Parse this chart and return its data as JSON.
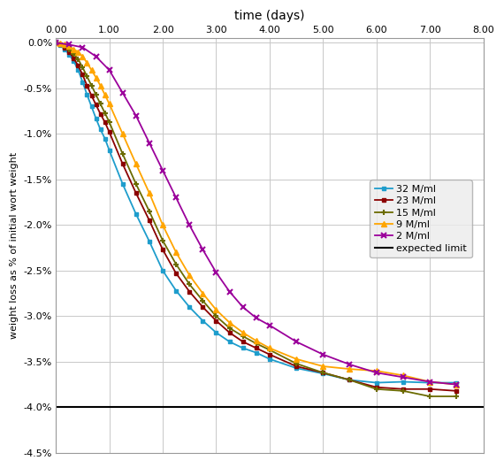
{
  "title": "time (days)",
  "ylabel": "weight loss as % of initial wort weight",
  "xlim": [
    0,
    8.0
  ],
  "ylim": [
    -4.5,
    0.05
  ],
  "xticks": [
    0.0,
    1.0,
    2.0,
    3.0,
    4.0,
    5.0,
    6.0,
    7.0,
    8.0
  ],
  "yticks": [
    0.0,
    -0.5,
    -1.0,
    -1.5,
    -2.0,
    -2.5,
    -3.0,
    -3.5,
    -4.0,
    -4.5
  ],
  "expected_limit": -4.0,
  "series": {
    "32 M/ml": {
      "color": "#1E9DCC",
      "x": [
        0,
        0.083,
        0.167,
        0.25,
        0.333,
        0.417,
        0.5,
        0.583,
        0.667,
        0.75,
        0.833,
        0.917,
        1.0,
        1.25,
        1.5,
        1.75,
        2.0,
        2.25,
        2.5,
        2.75,
        3.0,
        3.25,
        3.5,
        3.75,
        4.0,
        4.5,
        5.0,
        5.5,
        6.0,
        6.5,
        7.0,
        7.5
      ],
      "y": [
        0,
        -0.03,
        -0.07,
        -0.13,
        -0.2,
        -0.3,
        -0.43,
        -0.57,
        -0.7,
        -0.83,
        -0.95,
        -1.05,
        -1.18,
        -1.55,
        -1.88,
        -2.18,
        -2.5,
        -2.72,
        -2.9,
        -3.05,
        -3.18,
        -3.28,
        -3.35,
        -3.4,
        -3.47,
        -3.57,
        -3.63,
        -3.7,
        -3.73,
        -3.72,
        -3.73,
        -3.73
      ]
    },
    "23 M/ml": {
      "color": "#8B0000",
      "x": [
        0,
        0.083,
        0.167,
        0.25,
        0.333,
        0.417,
        0.5,
        0.583,
        0.667,
        0.75,
        0.833,
        0.917,
        1.0,
        1.25,
        1.5,
        1.75,
        2.0,
        2.25,
        2.5,
        2.75,
        3.0,
        3.25,
        3.5,
        3.75,
        4.0,
        4.5,
        5.0,
        5.5,
        6.0,
        6.5,
        7.0,
        7.5
      ],
      "y": [
        0,
        -0.02,
        -0.05,
        -0.1,
        -0.17,
        -0.25,
        -0.35,
        -0.47,
        -0.58,
        -0.68,
        -0.78,
        -0.87,
        -0.98,
        -1.33,
        -1.65,
        -1.95,
        -2.27,
        -2.53,
        -2.73,
        -2.9,
        -3.05,
        -3.18,
        -3.28,
        -3.35,
        -3.42,
        -3.55,
        -3.62,
        -3.7,
        -3.78,
        -3.8,
        -3.8,
        -3.82
      ]
    },
    "15 M/ml": {
      "color": "#6B6B00",
      "x": [
        0,
        0.083,
        0.167,
        0.25,
        0.333,
        0.417,
        0.5,
        0.583,
        0.667,
        0.75,
        0.833,
        0.917,
        1.0,
        1.25,
        1.5,
        1.75,
        2.0,
        2.25,
        2.5,
        2.75,
        3.0,
        3.25,
        3.5,
        3.75,
        4.0,
        4.5,
        5.0,
        5.5,
        6.0,
        6.5,
        7.0,
        7.5
      ],
      "y": [
        0,
        -0.02,
        -0.04,
        -0.07,
        -0.12,
        -0.18,
        -0.27,
        -0.37,
        -0.47,
        -0.57,
        -0.67,
        -0.77,
        -0.87,
        -1.22,
        -1.55,
        -1.85,
        -2.17,
        -2.43,
        -2.65,
        -2.83,
        -3.0,
        -3.13,
        -3.22,
        -3.3,
        -3.37,
        -3.52,
        -3.62,
        -3.7,
        -3.8,
        -3.82,
        -3.88,
        -3.88
      ]
    },
    "9 M/ml": {
      "color": "#FFA500",
      "x": [
        0,
        0.083,
        0.167,
        0.25,
        0.333,
        0.417,
        0.5,
        0.583,
        0.667,
        0.75,
        0.833,
        0.917,
        1.0,
        1.25,
        1.5,
        1.75,
        2.0,
        2.25,
        2.5,
        2.75,
        3.0,
        3.25,
        3.5,
        3.75,
        4.0,
        4.5,
        5.0,
        5.5,
        6.0,
        6.5,
        7.0,
        7.5
      ],
      "y": [
        0,
        -0.01,
        -0.02,
        -0.04,
        -0.07,
        -0.1,
        -0.15,
        -0.22,
        -0.3,
        -0.38,
        -0.47,
        -0.57,
        -0.67,
        -1.0,
        -1.33,
        -1.65,
        -2.0,
        -2.3,
        -2.55,
        -2.75,
        -2.93,
        -3.07,
        -3.18,
        -3.27,
        -3.35,
        -3.47,
        -3.55,
        -3.58,
        -3.6,
        -3.65,
        -3.72,
        -3.75
      ]
    },
    "2 M/ml": {
      "color": "#9B009B",
      "x": [
        0,
        0.25,
        0.5,
        0.75,
        1.0,
        1.25,
        1.5,
        1.75,
        2.0,
        2.25,
        2.5,
        2.75,
        3.0,
        3.25,
        3.5,
        3.75,
        4.0,
        4.5,
        5.0,
        5.5,
        6.0,
        6.5,
        7.0,
        7.5
      ],
      "y": [
        0,
        -0.02,
        -0.05,
        -0.15,
        -0.3,
        -0.55,
        -0.8,
        -1.1,
        -1.4,
        -1.7,
        -2.0,
        -2.27,
        -2.52,
        -2.73,
        -2.9,
        -3.02,
        -3.1,
        -3.28,
        -3.42,
        -3.53,
        -3.62,
        -3.67,
        -3.72,
        -3.75
      ]
    }
  }
}
